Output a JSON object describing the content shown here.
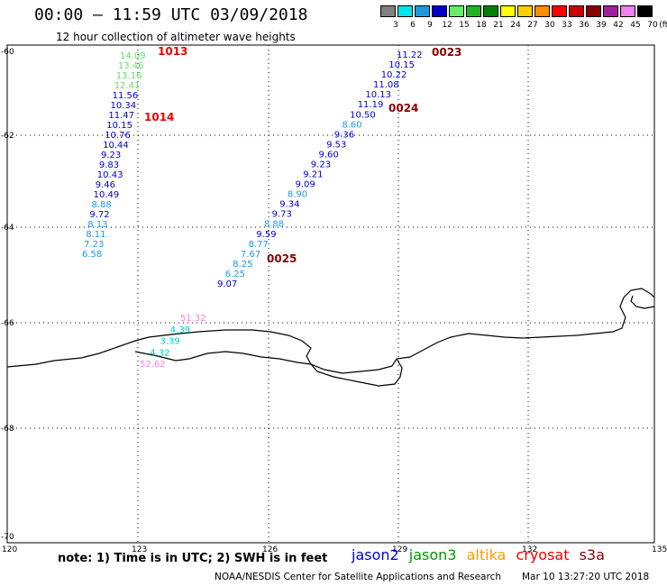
{
  "header": {
    "title": "00:00 – 11:59 UTC 03/09/2018",
    "subtitle": "12 hour collection of altimeter wave heights"
  },
  "color_scale": {
    "unit": "(ft)",
    "levels": [
      {
        "label": "3",
        "color": "#808080"
      },
      {
        "label": "6",
        "color": "#00e5ee"
      },
      {
        "label": "9",
        "color": "#1c9ae0"
      },
      {
        "label": "12",
        "color": "#0000cd"
      },
      {
        "label": "15",
        "color": "#66ee66"
      },
      {
        "label": "18",
        "color": "#22b422"
      },
      {
        "label": "21",
        "color": "#008000"
      },
      {
        "label": "24",
        "color": "#ffff00"
      },
      {
        "label": "27",
        "color": "#ffd000"
      },
      {
        "label": "30",
        "color": "#ff8c00"
      },
      {
        "label": "33",
        "color": "#ff0000"
      },
      {
        "label": "36",
        "color": "#cc0000"
      },
      {
        "label": "39",
        "color": "#8b0000"
      },
      {
        "label": "42",
        "color": "#a020a0"
      },
      {
        "label": "45",
        "color": "#ee82ee"
      },
      {
        "label": "70",
        "color": "#000000"
      }
    ]
  },
  "axes": {
    "lat_labels": [
      "-60",
      "-62",
      "-64",
      "-66",
      "-68",
      "-70"
    ],
    "lon_labels": [
      "120",
      "123",
      "126",
      "129",
      "132",
      "135"
    ]
  },
  "tracks": [
    {
      "name": "track-west",
      "points": [
        {
          "v": "14.09",
          "c": "#66dd66"
        },
        {
          "v": "13.46",
          "c": "#66dd66"
        },
        {
          "v": "13.16",
          "c": "#66dd66"
        },
        {
          "v": "12.41",
          "c": "#66dd66"
        },
        {
          "v": "11.56",
          "c": "#0000cd"
        },
        {
          "v": "10.34",
          "c": "#0000cd"
        },
        {
          "v": "11.47",
          "c": "#0000cd"
        },
        {
          "v": "10.15",
          "c": "#0000cd"
        },
        {
          "v": "10.76",
          "c": "#0000cd"
        },
        {
          "v": "10.44",
          "c": "#0000cd"
        },
        {
          "v": "9.23",
          "c": "#0000cd"
        },
        {
          "v": "9.83",
          "c": "#0000cd"
        },
        {
          "v": "10.43",
          "c": "#0000cd"
        },
        {
          "v": "9.46",
          "c": "#0000cd"
        },
        {
          "v": "10.49",
          "c": "#0000cd"
        },
        {
          "v": "8.88",
          "c": "#1c9ae0"
        },
        {
          "v": "9.72",
          "c": "#0000cd"
        },
        {
          "v": "8.13",
          "c": "#1c9ae0"
        },
        {
          "v": "8.11",
          "c": "#1c9ae0"
        },
        {
          "v": "7.23",
          "c": "#1c9ae0"
        },
        {
          "v": "6.58",
          "c": "#1c9ae0"
        }
      ]
    },
    {
      "name": "track-east",
      "points": [
        {
          "v": "11.22",
          "c": "#0000cd"
        },
        {
          "v": "10.15",
          "c": "#0000cd"
        },
        {
          "v": "10.22",
          "c": "#0000cd"
        },
        {
          "v": "11.08",
          "c": "#0000cd"
        },
        {
          "v": "10.13",
          "c": "#0000cd"
        },
        {
          "v": "11.19",
          "c": "#0000cd"
        },
        {
          "v": "10.50",
          "c": "#0000cd"
        },
        {
          "v": "8.60",
          "c": "#1c9ae0"
        },
        {
          "v": "9.36",
          "c": "#0000cd"
        },
        {
          "v": "9.53",
          "c": "#0000cd"
        },
        {
          "v": "9.60",
          "c": "#0000cd"
        },
        {
          "v": "9.23",
          "c": "#0000cd"
        },
        {
          "v": "9.21",
          "c": "#0000cd"
        },
        {
          "v": "9.09",
          "c": "#0000cd"
        },
        {
          "v": "8.90",
          "c": "#1c9ae0"
        },
        {
          "v": "9.34",
          "c": "#0000cd"
        },
        {
          "v": "9.73",
          "c": "#0000cd"
        },
        {
          "v": "8.88",
          "c": "#1c9ae0"
        },
        {
          "v": "9.59",
          "c": "#0000cd"
        },
        {
          "v": "8.77",
          "c": "#1c9ae0"
        },
        {
          "v": "7.67",
          "c": "#1c9ae0"
        },
        {
          "v": "8.25",
          "c": "#1c9ae0"
        },
        {
          "v": "6.25",
          "c": "#1c9ae0"
        },
        {
          "v": "9.07",
          "c": "#0000cd"
        }
      ]
    },
    {
      "name": "track-coast",
      "points": [
        {
          "v": "51.32",
          "c": "#ee82ee"
        },
        {
          "v": "4.39",
          "c": "#00cccc"
        },
        {
          "v": "3.39",
          "c": "#00cccc"
        },
        {
          "v": "4.32",
          "c": "#00cccc"
        },
        {
          "v": "52.62",
          "c": "#ee82ee"
        }
      ]
    }
  ],
  "time_labels": [
    {
      "text": "1013",
      "c": "#ee0000"
    },
    {
      "text": "1014",
      "c": "#ee0000"
    },
    {
      "text": "0023",
      "c": "#8b0000"
    },
    {
      "text": "0024",
      "c": "#8b0000"
    },
    {
      "text": "0025",
      "c": "#8b0000"
    }
  ],
  "footer": {
    "note": "note: 1) Time is in UTC; 2) SWH is in feet",
    "satellites": [
      {
        "name": "jason2",
        "color": "#0000dd"
      },
      {
        "name": "jason3",
        "color": "#009900"
      },
      {
        "name": "altika",
        "color": "#ff9900"
      },
      {
        "name": "cryosat",
        "color": "#ee0000"
      },
      {
        "name": "s3a",
        "color": "#8b0000"
      }
    ],
    "credit": "NOAA/NESDIS Center for Satellite Applications and Research",
    "timestamp": "Mar 10 13:27:20 UTC 2018"
  }
}
